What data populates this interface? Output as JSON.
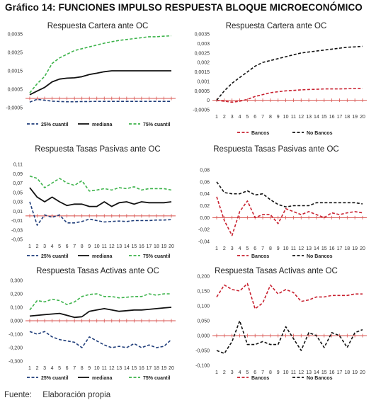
{
  "figure_title": "Gráfico 14: FUNCIONES IMPULSO RESPUESTA BLOQUE MICROECONÓMICO",
  "footer": {
    "label": "Fuente:",
    "text": "Elaboración propia"
  },
  "colors": {
    "black": "#111111",
    "blue": "#1f3d7a",
    "green": "#3cb34a",
    "red": "#c8202f",
    "grid_zero": "#d9534f"
  },
  "chart_data": [
    {
      "type": "line",
      "title": "Respuesta Cartera ante OC",
      "x": [
        1,
        2,
        3,
        4,
        5,
        6,
        7,
        8,
        9,
        10,
        11,
        12,
        13,
        14,
        15,
        16,
        17,
        18,
        19,
        20
      ],
      "ylim": [
        -0.0005,
        0.0035
      ],
      "yticks": [
        -0.0005,
        0.0005,
        0.0015,
        0.0025,
        0.0035
      ],
      "ytick_labels": [
        "-0,0005",
        "0,0005",
        "0,0015",
        "0,0025",
        "0,0035"
      ],
      "show_x_ticks": false,
      "series": [
        {
          "name": "25% cuantil",
          "color": "#1f3d7a",
          "dash": true,
          "values": [
            -0.0002,
            -5e-05,
            -0.0001,
            -0.00015,
            -0.00017,
            -0.00018,
            -0.00018,
            -0.00017,
            -0.00017,
            -0.00016,
            -0.00016,
            -0.00016,
            -0.00016,
            -0.00016,
            -0.00016,
            -0.00016,
            -0.00016,
            -0.00016,
            -0.00016,
            -0.00016
          ]
        },
        {
          "name": "mediana",
          "color": "#111111",
          "dash": false,
          "values": [
            0.0002,
            0.0004,
            0.0006,
            0.0009,
            0.00105,
            0.0011,
            0.00112,
            0.00118,
            0.0013,
            0.00137,
            0.00145,
            0.0015,
            0.0015,
            0.0015,
            0.0015,
            0.0015,
            0.0015,
            0.0015,
            0.0015,
            0.0015
          ]
        },
        {
          "name": "75% cuantil",
          "color": "#3cb34a",
          "dash": true,
          "values": [
            0.0003,
            0.0008,
            0.0012,
            0.0019,
            0.0022,
            0.0024,
            0.0026,
            0.0027,
            0.0028,
            0.0029,
            0.003,
            0.00308,
            0.00315,
            0.0032,
            0.00325,
            0.0033,
            0.00335,
            0.00335,
            0.00338,
            0.0034
          ]
        }
      ]
    },
    {
      "type": "line",
      "title": "Respuesta Cartera ante OC",
      "x": [
        1,
        2,
        3,
        4,
        5,
        6,
        7,
        8,
        9,
        10,
        11,
        12,
        13,
        14,
        15,
        16,
        17,
        18,
        19,
        20
      ],
      "ylim": [
        -0.0005,
        0.0035
      ],
      "yticks": [
        -0.0005,
        0,
        0.0005,
        0.001,
        0.0015,
        0.002,
        0.0025,
        0.003,
        0.0035
      ],
      "ytick_labels": [
        "-0,0005",
        "0",
        "0,0005",
        "0,001",
        "0,0015",
        "0,002",
        "0,0025",
        "0,003",
        "0,0035"
      ],
      "show_x_ticks": true,
      "series": [
        {
          "name": "Bancos",
          "color": "#c8202f",
          "dash": true,
          "values": [
            0,
            -5e-05,
            -0.0001,
            -5e-05,
            5e-05,
            0.0002,
            0.0003,
            0.0004,
            0.00045,
            0.0005,
            0.00052,
            0.00055,
            0.00057,
            0.00058,
            0.0006,
            0.0006,
            0.0006,
            0.00061,
            0.00062,
            0.00063
          ]
        },
        {
          "name": "No Bancos",
          "color": "#111111",
          "dash": true,
          "values": [
            0,
            0.0005,
            0.0009,
            0.0012,
            0.0015,
            0.0018,
            0.002,
            0.0021,
            0.0022,
            0.0023,
            0.0024,
            0.0025,
            0.00255,
            0.0026,
            0.00265,
            0.0027,
            0.00275,
            0.0028,
            0.00282,
            0.00285
          ]
        }
      ]
    },
    {
      "type": "line",
      "title": "Respuesta Tasas Pasivas ante OC",
      "x": [
        1,
        2,
        3,
        4,
        5,
        6,
        7,
        8,
        9,
        10,
        11,
        12,
        13,
        14,
        15,
        16,
        17,
        18,
        19,
        20
      ],
      "ylim": [
        -0.05,
        0.11
      ],
      "yticks": [
        -0.05,
        -0.03,
        -0.01,
        0.01,
        0.03,
        0.05,
        0.07,
        0.09,
        0.11
      ],
      "ytick_labels": [
        "-0,05",
        "-0,03",
        "-0,01",
        "0,01",
        "0,03",
        "0,05",
        "0,07",
        "0,09",
        "0,11"
      ],
      "show_x_ticks": true,
      "series": [
        {
          "name": "25% cuantil",
          "color": "#1f3d7a",
          "dash": true,
          "values": [
            0.03,
            -0.02,
            0.002,
            -0.003,
            0.002,
            -0.015,
            -0.015,
            -0.012,
            -0.007,
            -0.01,
            -0.013,
            -0.012,
            -0.011,
            -0.012,
            -0.01,
            -0.01,
            -0.01,
            -0.009,
            -0.009,
            -0.008
          ]
        },
        {
          "name": "mediana",
          "color": "#111111",
          "dash": false,
          "values": [
            0.06,
            0.04,
            0.03,
            0.04,
            0.03,
            0.022,
            0.025,
            0.025,
            0.02,
            0.02,
            0.03,
            0.02,
            0.028,
            0.03,
            0.025,
            0.03,
            0.028,
            0.028,
            0.028,
            0.03
          ]
        },
        {
          "name": "75% cuantil",
          "color": "#3cb34a",
          "dash": true,
          "values": [
            0.085,
            0.08,
            0.06,
            0.07,
            0.08,
            0.07,
            0.065,
            0.075,
            0.053,
            0.055,
            0.058,
            0.055,
            0.06,
            0.058,
            0.062,
            0.055,
            0.058,
            0.058,
            0.058,
            0.055
          ]
        }
      ]
    },
    {
      "type": "line",
      "title": "Respuesta Tasas Pasivas ante OC",
      "x": [
        1,
        2,
        3,
        4,
        5,
        6,
        7,
        8,
        9,
        10,
        11,
        12,
        13,
        14,
        15,
        16,
        17,
        18,
        19,
        20
      ],
      "ylim": [
        -0.04,
        0.08
      ],
      "yticks": [
        -0.04,
        -0.02,
        0,
        0.02,
        0.04,
        0.06,
        0.08
      ],
      "ytick_labels": [
        "-0,04",
        "-0,02",
        "0,00",
        "0,02",
        "0,04",
        "0,06",
        "0,08"
      ],
      "show_x_ticks": true,
      "series": [
        {
          "name": "Bancos",
          "color": "#c8202f",
          "dash": true,
          "values": [
            0.035,
            -0.005,
            -0.03,
            0.01,
            0.028,
            0,
            0.005,
            0.005,
            -0.01,
            0.015,
            0.01,
            0.005,
            0.01,
            0.005,
            0,
            0.008,
            0.005,
            0.008,
            0.01,
            0.008
          ]
        },
        {
          "name": "No Bancos",
          "color": "#111111",
          "dash": true,
          "values": [
            0.06,
            0.042,
            0.04,
            0.04,
            0.045,
            0.038,
            0.04,
            0.03,
            0.022,
            0.018,
            0.02,
            0.02,
            0.02,
            0.025,
            0.025,
            0.025,
            0.025,
            0.025,
            0.025,
            0.023
          ]
        }
      ]
    },
    {
      "type": "line",
      "title": "Respuesta Tasas Activas ante OC",
      "x": [
        1,
        2,
        3,
        4,
        5,
        6,
        7,
        8,
        9,
        10,
        11,
        12,
        13,
        14,
        15,
        16,
        17,
        18,
        19,
        20
      ],
      "ylim": [
        -0.3,
        0.3
      ],
      "yticks": [
        -0.3,
        -0.2,
        -0.1,
        0,
        0.1,
        0.2,
        0.3
      ],
      "ytick_labels": [
        "-0,300",
        "-0,200",
        "-0,100",
        "0,000",
        "0,100",
        "0,200",
        "0,300"
      ],
      "show_x_ticks": true,
      "series": [
        {
          "name": "25% cuantil",
          "color": "#1f3d7a",
          "dash": true,
          "values": [
            -0.08,
            -0.1,
            -0.08,
            -0.12,
            -0.14,
            -0.15,
            -0.16,
            -0.2,
            -0.12,
            -0.15,
            -0.18,
            -0.2,
            -0.19,
            -0.2,
            -0.17,
            -0.2,
            -0.18,
            -0.2,
            -0.19,
            -0.14
          ]
        },
        {
          "name": "mediana",
          "color": "#111111",
          "dash": false,
          "values": [
            0.035,
            0.04,
            0.045,
            0.05,
            0.055,
            0.04,
            0.025,
            0.03,
            0.07,
            0.08,
            0.09,
            0.08,
            0.07,
            0.075,
            0.08,
            0.08,
            0.085,
            0.09,
            0.095,
            0.1
          ]
        },
        {
          "name": "75% cuantil",
          "color": "#3cb34a",
          "dash": true,
          "values": [
            0.08,
            0.15,
            0.14,
            0.16,
            0.15,
            0.12,
            0.14,
            0.18,
            0.195,
            0.2,
            0.18,
            0.18,
            0.17,
            0.175,
            0.18,
            0.18,
            0.2,
            0.19,
            0.2,
            0.2
          ]
        }
      ]
    },
    {
      "type": "line",
      "title": "Respuesta Tasas Activas ante OC",
      "x": [
        1,
        2,
        3,
        4,
        5,
        6,
        7,
        8,
        9,
        10,
        11,
        12,
        13,
        14,
        15,
        16,
        17,
        18,
        19,
        20
      ],
      "ylim": [
        -0.1,
        0.2
      ],
      "yticks": [
        -0.1,
        -0.05,
        0,
        0.05,
        0.1,
        0.15,
        0.2
      ],
      "ytick_labels": [
        "-0,100",
        "-0,050",
        "0,000",
        "0,050",
        "0,100",
        "0,150",
        "0,200"
      ],
      "show_x_ticks": true,
      "series": [
        {
          "name": "Bancos",
          "color": "#c8202f",
          "dash": true,
          "values": [
            0.13,
            0.17,
            0.155,
            0.15,
            0.175,
            0.09,
            0.11,
            0.17,
            0.14,
            0.155,
            0.145,
            0.115,
            0.12,
            0.13,
            0.13,
            0.135,
            0.135,
            0.135,
            0.14,
            0.14
          ]
        },
        {
          "name": "No Bancos",
          "color": "#111111",
          "dash": true,
          "values": [
            -0.05,
            -0.06,
            -0.02,
            0.05,
            -0.03,
            -0.03,
            -0.02,
            -0.03,
            -0.03,
            0.03,
            -0.01,
            -0.05,
            0.01,
            0,
            -0.04,
            0.01,
            0,
            -0.04,
            0.01,
            0.02
          ]
        }
      ]
    }
  ]
}
